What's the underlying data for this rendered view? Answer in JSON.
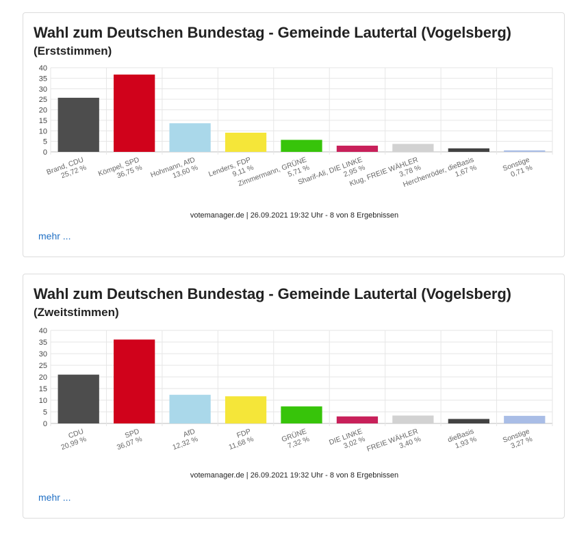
{
  "more_label": "mehr ...",
  "chart_data": [
    {
      "type": "bar",
      "title": "Wahl zum Deutschen Bundestag - Gemeinde Lautertal (Vogelsberg)",
      "subtitle": "(Erststimmen)",
      "footer": "votemanager.de | 26.09.2021 19:32 Uhr - 8 von 8 Ergebnissen",
      "ylim": [
        0,
        40
      ],
      "yticks": [
        0,
        5,
        10,
        15,
        20,
        25,
        30,
        35,
        40
      ],
      "categories": [
        "Brand, CDU",
        "Kömpel, SPD",
        "Hohmann, AfD",
        "Lenders, FDP",
        "Zimmermann, GRÜNE",
        "Sharif-Ali, DIE LINKE",
        "Klug, FREIE WÄHLER",
        "Herchenröder, dieBasis",
        "Sonstige"
      ],
      "value_labels": [
        "25,72 %",
        "36,75 %",
        "13,60 %",
        "9,11 %",
        "5,71 %",
        "2,95 %",
        "3,78 %",
        "1,67 %",
        "0,71 %"
      ],
      "values": [
        25.72,
        36.75,
        13.6,
        9.11,
        5.71,
        2.95,
        3.78,
        1.67,
        0.71
      ],
      "colors": [
        "#4d4d4d",
        "#d0021b",
        "#aad8ea",
        "#f5e639",
        "#37c40a",
        "#c8205a",
        "#d2d2d2",
        "#424242",
        "#a9bde6"
      ]
    },
    {
      "type": "bar",
      "title": "Wahl zum Deutschen Bundestag - Gemeinde Lautertal (Vogelsberg)",
      "subtitle": "(Zweitstimmen)",
      "footer": "votemanager.de | 26.09.2021 19:32 Uhr - 8 von 8 Ergebnissen",
      "ylim": [
        0,
        40
      ],
      "yticks": [
        0,
        5,
        10,
        15,
        20,
        25,
        30,
        35,
        40
      ],
      "categories": [
        "CDU",
        "SPD",
        "AfD",
        "FDP",
        "GRÜNE",
        "DIE LINKE",
        "FREIE WÄHLER",
        "dieBasis",
        "Sonstige"
      ],
      "value_labels": [
        "20,99 %",
        "36,07 %",
        "12,32 %",
        "11,68 %",
        "7,32 %",
        "3,02 %",
        "3,40 %",
        "1,93 %",
        "3,27 %"
      ],
      "values": [
        20.99,
        36.07,
        12.32,
        11.68,
        7.32,
        3.02,
        3.4,
        1.93,
        3.27
      ],
      "colors": [
        "#4d4d4d",
        "#d0021b",
        "#aad8ea",
        "#f5e639",
        "#37c40a",
        "#c8205a",
        "#d2d2d2",
        "#424242",
        "#a9bde6"
      ]
    }
  ]
}
